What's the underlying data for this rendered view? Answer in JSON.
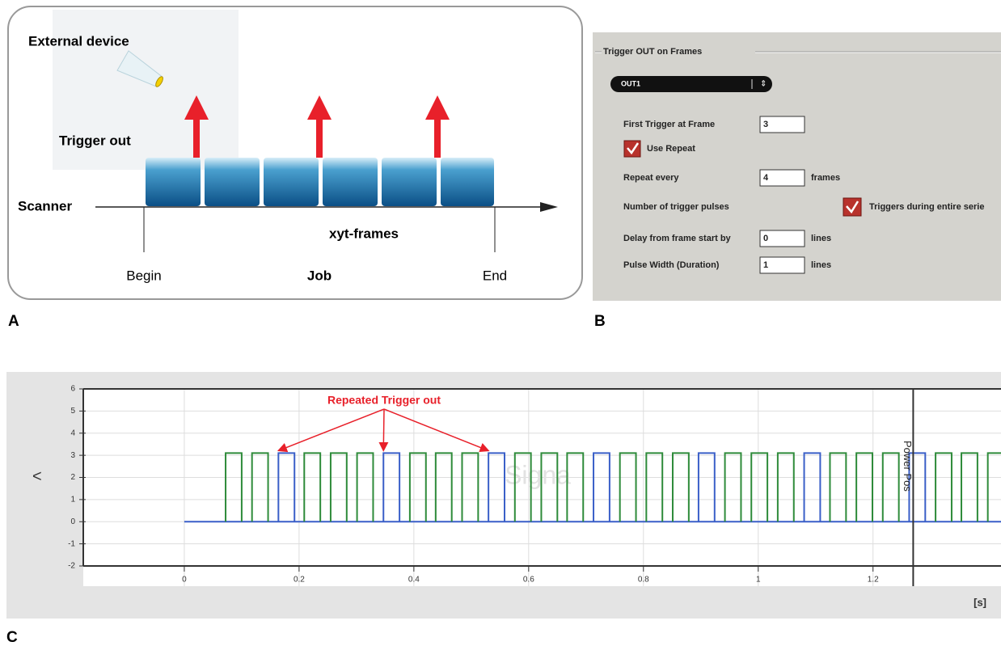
{
  "panel_a": {
    "label": "A",
    "external_device": "External device",
    "trigger_out": "Trigger out",
    "scanner": "Scanner",
    "frames": "xyt-frames",
    "begin": "Begin",
    "job": "Job",
    "end": "End"
  },
  "panel_b": {
    "label": "B",
    "group_title": "Trigger OUT on Frames",
    "output": "OUT1",
    "first_trigger_label": "First Trigger at Frame",
    "first_trigger_value": "3",
    "use_repeat": "Use Repeat",
    "repeat_label": "Repeat every",
    "repeat_value": "4",
    "repeat_unit": "frames",
    "pulses_label": "Number of trigger pulses",
    "pulses_option": "Triggers during entire serie",
    "delay_label": "Delay from frame start by",
    "delay_value": "0",
    "delay_unit": "lines",
    "width_label": "Pulse Width (Duration)",
    "width_value": "1",
    "width_unit": "lines"
  },
  "panel_c": {
    "label": "C",
    "nav": "<",
    "watermark": "Signa",
    "cursor_label": "Power Pos",
    "x_unit": "[s]"
  },
  "chart_data": {
    "type": "pulse",
    "annotation": "Repeated Trigger out",
    "xlim": [
      -0.176,
      1.423
    ],
    "ylim": [
      -2,
      6
    ],
    "xticks": [
      0,
      0.2,
      0.4,
      0.6,
      0.8,
      1,
      1.2
    ],
    "yticks": [
      -2,
      -1,
      0,
      1,
      2,
      3,
      4,
      5,
      6
    ],
    "grid": true,
    "cursor_x": 1.27,
    "baseline": 0,
    "baseline_start": 0,
    "baseline_color": "#3a5fc8",
    "pulse_height": 3.1,
    "pulse_width": 0.028,
    "series": [
      {
        "color": "#2e8b3a",
        "starts": [
          0.072,
          0.118,
          0.209,
          0.255,
          0.301,
          0.393,
          0.438,
          0.484,
          0.576,
          0.622,
          0.667,
          0.759,
          0.805,
          0.851,
          0.942,
          0.988,
          1.034,
          1.125,
          1.171,
          1.217,
          1.309,
          1.354,
          1.4
        ]
      },
      {
        "color": "#3a5fc8",
        "starts": [
          0.164,
          0.347,
          0.53,
          0.713,
          0.896,
          1.08,
          1.263
        ]
      }
    ]
  }
}
